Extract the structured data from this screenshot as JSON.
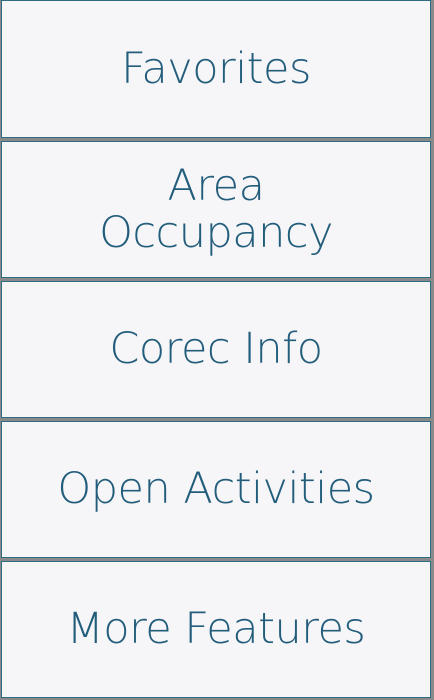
{
  "menu": {
    "items": [
      {
        "label": "Favorites"
      },
      {
        "label": "Area Occupancy"
      },
      {
        "label": "Corec Info"
      },
      {
        "label": "Open Activities"
      },
      {
        "label": "More Features"
      }
    ]
  },
  "colors": {
    "tile_background": "#f6f5f7",
    "tile_border": "#2f6b82",
    "label_text": "#225d7b"
  }
}
